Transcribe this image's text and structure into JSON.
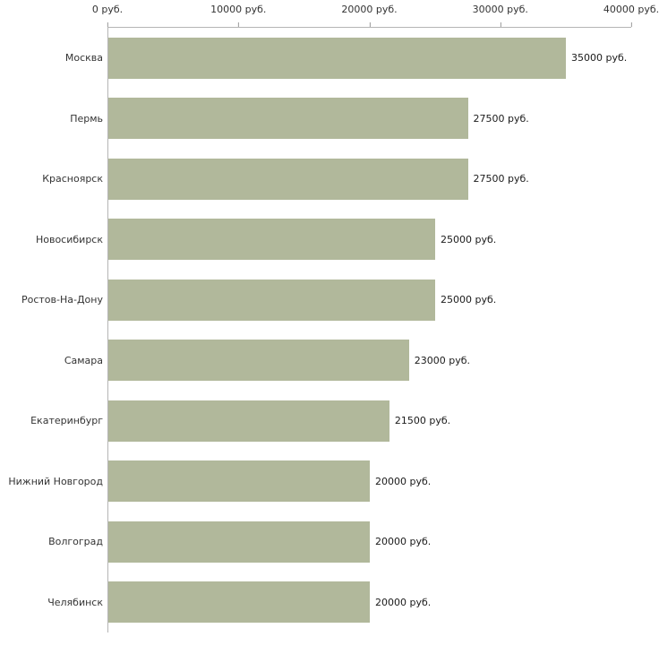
{
  "chart_data": {
    "type": "bar",
    "orientation": "horizontal",
    "title": "",
    "xlabel": "",
    "ylabel": "",
    "xlim": [
      0,
      40000
    ],
    "grid": false,
    "legend": false,
    "bar_color": "#b1b89b",
    "axis_color": "#b5b5b5",
    "x_ticks": [
      {
        "value": 0,
        "label": "0 руб."
      },
      {
        "value": 10000,
        "label": "10000 руб."
      },
      {
        "value": 20000,
        "label": "20000 руб."
      },
      {
        "value": 30000,
        "label": "30000 руб."
      },
      {
        "value": 40000,
        "label": "40000 руб."
      }
    ],
    "categories": [
      "Москва",
      "Пермь",
      "Красноярск",
      "Новосибирск",
      "Ростов-На-Дону",
      "Самара",
      "Екатеринбург",
      "Нижний Новгород",
      "Волгоград",
      "Челябинск"
    ],
    "values": [
      35000,
      27500,
      27500,
      25000,
      25000,
      23000,
      21500,
      20000,
      20000,
      20000
    ],
    "value_labels": [
      "35000 руб.",
      "27500 руб.",
      "27500 руб.",
      "25000 руб.",
      "25000 руб.",
      "23000 руб.",
      "21500 руб.",
      "20000 руб.",
      "20000 руб.",
      "20000 руб."
    ]
  }
}
